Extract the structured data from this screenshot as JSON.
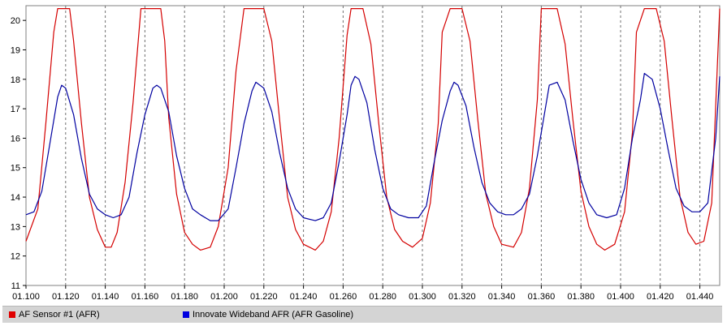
{
  "chart_data": {
    "type": "line",
    "title": "",
    "xlabel": "",
    "ylabel": "",
    "xlim": [
      1.1,
      1.45
    ],
    "ylim": [
      11,
      20.5
    ],
    "x_ticks": [
      "01.100",
      "01.120",
      "01.140",
      "01.160",
      "01.180",
      "01.200",
      "01.220",
      "01.240",
      "01.260",
      "01.280",
      "01.300",
      "01.320",
      "01.340",
      "01.360",
      "01.380",
      "01.400",
      "01.420",
      "01.440"
    ],
    "y_ticks": [
      "11",
      "12",
      "13",
      "14",
      "15",
      "16",
      "17",
      "18",
      "19",
      "20"
    ],
    "grid": "vertical dashed",
    "legend_position": "bottom",
    "series": [
      {
        "name": "AF Sensor #1 (AFR)",
        "color": "#d40000",
        "x": [
          1.1,
          1.106,
          1.11,
          1.114,
          1.116,
          1.12,
          1.122,
          1.124,
          1.128,
          1.132,
          1.136,
          1.14,
          1.143,
          1.146,
          1.15,
          1.154,
          1.158,
          1.162,
          1.164,
          1.168,
          1.17,
          1.172,
          1.176,
          1.18,
          1.184,
          1.188,
          1.193,
          1.197,
          1.202,
          1.206,
          1.21,
          1.212,
          1.218,
          1.22,
          1.224,
          1.228,
          1.232,
          1.236,
          1.24,
          1.246,
          1.25,
          1.254,
          1.258,
          1.262,
          1.264,
          1.268,
          1.27,
          1.274,
          1.278,
          1.282,
          1.286,
          1.29,
          1.295,
          1.3,
          1.304,
          1.308,
          1.31,
          1.314,
          1.316,
          1.32,
          1.324,
          1.328,
          1.332,
          1.336,
          1.34,
          1.346,
          1.35,
          1.354,
          1.358,
          1.36,
          1.366,
          1.368,
          1.372,
          1.376,
          1.38,
          1.384,
          1.388,
          1.392,
          1.397,
          1.402,
          1.406,
          1.408,
          1.412,
          1.414,
          1.416,
          1.418,
          1.422,
          1.426,
          1.43,
          1.434,
          1.438,
          1.442,
          1.446,
          1.45
        ],
        "y": [
          12.5,
          13.6,
          16.5,
          19.6,
          20.4,
          20.4,
          20.4,
          19.3,
          16.5,
          14.0,
          12.9,
          12.3,
          12.3,
          12.8,
          14.5,
          17.2,
          20.4,
          20.4,
          20.4,
          20.4,
          19.3,
          16.7,
          14.1,
          12.8,
          12.4,
          12.2,
          12.3,
          13.0,
          15.0,
          18.3,
          20.4,
          20.4,
          20.4,
          20.4,
          19.3,
          16.6,
          14.0,
          12.9,
          12.4,
          12.2,
          12.5,
          13.5,
          16.0,
          19.5,
          20.4,
          20.4,
          20.4,
          19.2,
          16.5,
          14.0,
          12.9,
          12.5,
          12.3,
          12.6,
          13.8,
          16.5,
          19.6,
          20.4,
          20.4,
          20.4,
          19.3,
          16.6,
          14.1,
          13.0,
          12.4,
          12.3,
          12.8,
          14.3,
          17.3,
          20.4,
          20.4,
          20.4,
          19.2,
          16.6,
          14.2,
          13.0,
          12.4,
          12.2,
          12.4,
          13.5,
          16.2,
          19.6,
          20.4,
          20.4,
          20.4,
          20.4,
          19.3,
          16.6,
          14.0,
          12.8,
          12.4,
          12.5,
          13.8,
          20.4
        ]
      },
      {
        "name": "Innovate Wideband AFR (AFR Gasoline)",
        "color": "#0000a0",
        "x": [
          1.1,
          1.104,
          1.108,
          1.112,
          1.116,
          1.118,
          1.12,
          1.124,
          1.128,
          1.132,
          1.136,
          1.14,
          1.144,
          1.148,
          1.152,
          1.156,
          1.16,
          1.164,
          1.166,
          1.168,
          1.172,
          1.176,
          1.18,
          1.184,
          1.188,
          1.193,
          1.197,
          1.202,
          1.206,
          1.21,
          1.214,
          1.216,
          1.22,
          1.224,
          1.228,
          1.232,
          1.236,
          1.24,
          1.246,
          1.25,
          1.254,
          1.258,
          1.262,
          1.264,
          1.266,
          1.268,
          1.272,
          1.276,
          1.28,
          1.284,
          1.288,
          1.293,
          1.298,
          1.302,
          1.306,
          1.31,
          1.314,
          1.316,
          1.318,
          1.322,
          1.326,
          1.33,
          1.334,
          1.338,
          1.342,
          1.346,
          1.35,
          1.354,
          1.358,
          1.362,
          1.364,
          1.368,
          1.372,
          1.376,
          1.38,
          1.384,
          1.388,
          1.393,
          1.398,
          1.402,
          1.406,
          1.41,
          1.412,
          1.416,
          1.42,
          1.424,
          1.428,
          1.432,
          1.436,
          1.44,
          1.444,
          1.448,
          1.45
        ],
        "y": [
          13.4,
          13.5,
          14.2,
          15.8,
          17.4,
          17.8,
          17.7,
          16.8,
          15.3,
          14.1,
          13.6,
          13.4,
          13.3,
          13.4,
          14.0,
          15.5,
          16.8,
          17.7,
          17.8,
          17.7,
          16.9,
          15.4,
          14.3,
          13.6,
          13.4,
          13.2,
          13.2,
          13.6,
          15.0,
          16.5,
          17.6,
          17.9,
          17.7,
          16.9,
          15.5,
          14.3,
          13.6,
          13.3,
          13.2,
          13.3,
          13.8,
          15.2,
          16.8,
          17.8,
          18.1,
          18.0,
          17.2,
          15.6,
          14.3,
          13.6,
          13.4,
          13.3,
          13.3,
          13.7,
          15.2,
          16.6,
          17.6,
          17.9,
          17.8,
          17.1,
          15.7,
          14.5,
          13.8,
          13.5,
          13.4,
          13.4,
          13.6,
          14.1,
          15.4,
          17.0,
          17.8,
          17.9,
          17.3,
          15.9,
          14.6,
          13.8,
          13.4,
          13.3,
          13.4,
          14.3,
          16.0,
          17.3,
          18.2,
          18.0,
          17.0,
          15.6,
          14.3,
          13.7,
          13.5,
          13.5,
          13.8,
          16.0,
          18.1
        ]
      }
    ]
  }
}
